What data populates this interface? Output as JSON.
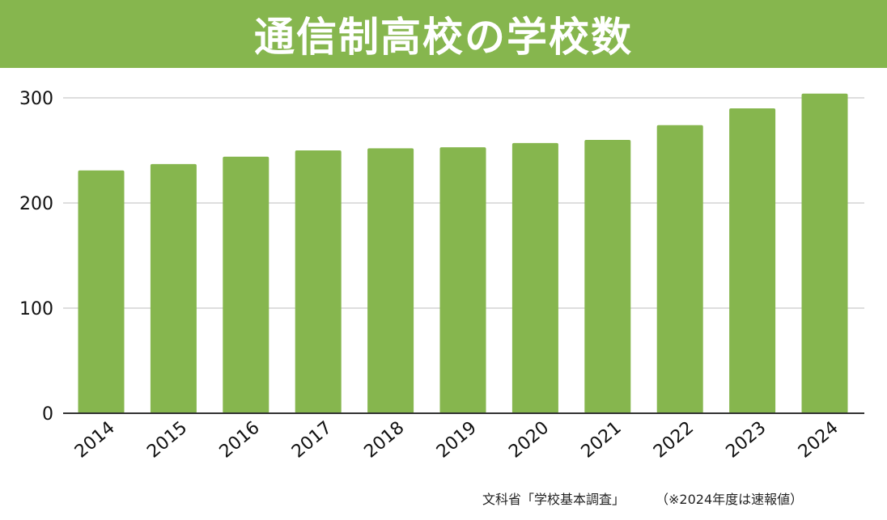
{
  "title": "通信制高校の学校数",
  "colors": {
    "accent": "#86b64e",
    "bar": "#86b64e",
    "grid": "#d4d4d4",
    "axis": "#333333",
    "text": "#111111"
  },
  "chart_data": {
    "type": "bar",
    "title": "通信制高校の学校数",
    "xlabel": "",
    "ylabel": "",
    "categories": [
      "2014",
      "2015",
      "2016",
      "2017",
      "2018",
      "2019",
      "2020",
      "2021",
      "2022",
      "2023",
      "2024"
    ],
    "series": [
      {
        "values": [
          231,
          237,
          244,
          250,
          252,
          253,
          257,
          260,
          274,
          290,
          304
        ]
      }
    ],
    "ylim": [
      0,
      300
    ],
    "yticks": [
      0,
      100,
      200,
      300
    ],
    "grid": true,
    "legend": "none"
  },
  "source": {
    "main": "文科省「学校基本調査」",
    "note": "（※2024年度は速報値）"
  }
}
